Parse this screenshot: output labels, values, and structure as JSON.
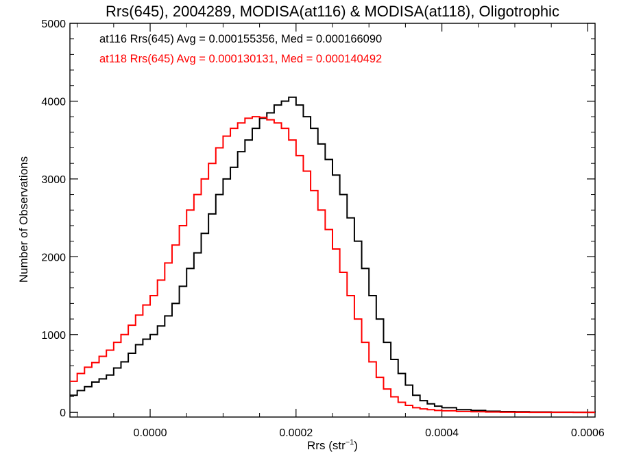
{
  "chart_data": {
    "type": "histogram",
    "title": "Rrs(645), 2004289, MODISA(at116) & MODISA(at118), Oligotrophic",
    "xlabel_main": "Rrs (str",
    "xlabel_sup": "−1",
    "xlabel_close": ")",
    "ylabel": "Number of Observations",
    "xlim": [
      -0.00011,
      0.00061
    ],
    "ylim": [
      -60,
      5000
    ],
    "x_ticks": [
      {
        "value": 0.0,
        "label": "0.0000"
      },
      {
        "value": 0.0002,
        "label": "0.0002"
      },
      {
        "value": 0.0004,
        "label": "0.0004"
      },
      {
        "value": 0.0006,
        "label": "0.0006"
      }
    ],
    "y_ticks": [
      {
        "value": 0,
        "label": "0"
      },
      {
        "value": 1000,
        "label": "1000"
      },
      {
        "value": 2000,
        "label": "2000"
      },
      {
        "value": 3000,
        "label": "3000"
      },
      {
        "value": 4000,
        "label": "4000"
      },
      {
        "value": 5000,
        "label": "5000"
      }
    ],
    "legend": [
      {
        "text": "at116 Rrs(645) Avg = 0.000155356, Med = 0.000166090",
        "color": "#000000"
      },
      {
        "text": "at118 Rrs(645) Avg = 0.000130131, Med = 0.000140492",
        "color": "#ff0000"
      }
    ],
    "series": [
      {
        "color": "#000000",
        "x": [
          -0.00011,
          -0.0001,
          -9e-05,
          -8e-05,
          -7e-05,
          -6e-05,
          -5e-05,
          -4e-05,
          -3e-05,
          -2e-05,
          -1e-05,
          0.0,
          1e-05,
          2e-05,
          3e-05,
          4e-05,
          5e-05,
          6e-05,
          7e-05,
          8e-05,
          9e-05,
          0.0001,
          0.00011,
          0.00012,
          0.00013,
          0.00014,
          0.00015,
          0.00016,
          0.00017,
          0.00018,
          0.00019,
          0.0002,
          0.00021,
          0.00022,
          0.00023,
          0.00024,
          0.00025,
          0.00026,
          0.00027,
          0.00028,
          0.00029,
          0.0003,
          0.00031,
          0.00032,
          0.00033,
          0.00034,
          0.00035,
          0.00036,
          0.00037,
          0.00038,
          0.00039,
          0.0004,
          0.00042,
          0.00044,
          0.00046,
          0.00048,
          0.0005,
          0.00052,
          0.00055,
          0.00058,
          0.00061
        ],
        "y": [
          220,
          280,
          330,
          390,
          430,
          480,
          570,
          650,
          760,
          870,
          940,
          1000,
          1110,
          1240,
          1400,
          1620,
          1850,
          2050,
          2300,
          2550,
          2800,
          3000,
          3150,
          3350,
          3500,
          3650,
          3780,
          3850,
          3950,
          4000,
          4050,
          3950,
          3800,
          3650,
          3450,
          3250,
          3050,
          2800,
          2500,
          2200,
          1850,
          1500,
          1200,
          900,
          680,
          500,
          350,
          220,
          150,
          110,
          80,
          60,
          35,
          25,
          15,
          10,
          8,
          5,
          3,
          2,
          0
        ]
      },
      {
        "color": "#ff0000",
        "x": [
          -0.00011,
          -0.0001,
          -9e-05,
          -8e-05,
          -7e-05,
          -6e-05,
          -5e-05,
          -4e-05,
          -3e-05,
          -2e-05,
          -1e-05,
          0.0,
          1e-05,
          2e-05,
          3e-05,
          4e-05,
          5e-05,
          6e-05,
          7e-05,
          8e-05,
          9e-05,
          0.0001,
          0.00011,
          0.00012,
          0.00013,
          0.00014,
          0.00015,
          0.00016,
          0.00017,
          0.00018,
          0.00019,
          0.0002,
          0.00021,
          0.00022,
          0.00023,
          0.00024,
          0.00025,
          0.00026,
          0.00027,
          0.00028,
          0.00029,
          0.0003,
          0.00031,
          0.00032,
          0.00033,
          0.00034,
          0.00035,
          0.00036,
          0.00037,
          0.00038,
          0.00039,
          0.0004,
          0.00042,
          0.00044,
          0.00046,
          0.00048,
          0.0005,
          0.00052,
          0.00055,
          0.00058,
          0.00061
        ],
        "y": [
          400,
          500,
          580,
          640,
          720,
          800,
          900,
          1000,
          1120,
          1250,
          1380,
          1500,
          1700,
          1920,
          2150,
          2400,
          2600,
          2800,
          3000,
          3200,
          3400,
          3550,
          3650,
          3720,
          3780,
          3800,
          3790,
          3760,
          3720,
          3650,
          3500,
          3300,
          3100,
          2850,
          2600,
          2350,
          2100,
          1800,
          1500,
          1200,
          900,
          650,
          450,
          300,
          200,
          130,
          90,
          60,
          45,
          35,
          25,
          20,
          12,
          8,
          5,
          3,
          2,
          1,
          1,
          0,
          0
        ]
      }
    ]
  }
}
